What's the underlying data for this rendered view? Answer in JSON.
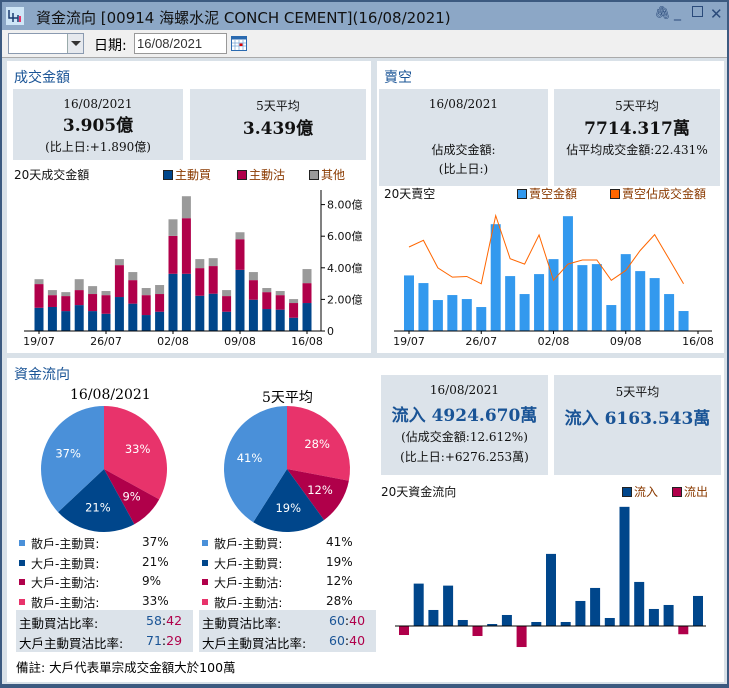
{
  "window": {
    "title": "資金流向 [00914  海螺水泥  CONCH CEMENT](16/08/2021)",
    "controls": [
      "pin",
      "minimize",
      "maximize",
      "close"
    ]
  },
  "toolbar": {
    "dropdown_value": "",
    "date_label": "日期:",
    "date_value": "16/08/2021"
  },
  "colors": {
    "buy": "#00468b",
    "sell": "#b0004a",
    "other": "#9a9a9a",
    "short": "#3399ee",
    "short_ratio": "#ff6600",
    "retail_buy": "#4a90d9",
    "big_buy": "#00468b",
    "big_sell": "#b0004a",
    "retail_sell": "#e8336b",
    "title_blue": "#1a5496"
  },
  "turnover": {
    "title": "成交金額",
    "today": {
      "date": "16/08/2021",
      "value": "3.905億",
      "change": "(比上日:+1.890億)"
    },
    "avg5": {
      "label": "5天平均",
      "value": "3.439億"
    },
    "chart_title": "20天成交金額",
    "legend": [
      "主動買",
      "主動沽",
      "其他"
    ]
  },
  "short": {
    "title": "賣空",
    "today": {
      "date": "16/08/2021",
      "pct": "佔成交金額:",
      "change": "(比上日:)"
    },
    "avg5": {
      "label": "5天平均",
      "value": "7714.317萬",
      "pct": "佔平均成交金額:22.431%"
    },
    "chart_title": "20天賣空",
    "legend": [
      "賣空金額",
      "賣空佔成交金額"
    ]
  },
  "flow": {
    "title": "資金流向",
    "pie_today_title": "16/08/2021",
    "pie_avg_title": "5天平均",
    "categories": [
      "散戶-主動買:",
      "大戶-主動買:",
      "大戶-主動沽:",
      "散戶-主動沽:"
    ],
    "today_pct": [
      37,
      21,
      9,
      33
    ],
    "avg_pct": [
      41,
      19,
      12,
      28
    ],
    "ratio_labels": [
      "主動買沽比率:",
      "大戶主動買沽比率:"
    ],
    "today_ratios": [
      [
        "58",
        "42"
      ],
      [
        "71",
        "29"
      ]
    ],
    "avg_ratios": [
      [
        "60",
        "40"
      ],
      [
        "60",
        "40"
      ]
    ],
    "today": {
      "date": "16/08/2021",
      "value": "流入 4924.670萬",
      "pct": "(佔成交金額:12.612%)",
      "change": "(比上日:+6276.253萬)"
    },
    "avg5": {
      "label": "5天平均",
      "value": "流入 6163.543萬"
    },
    "chart_title": "20天資金流向",
    "legend": [
      "流入",
      "流出"
    ],
    "note": "備註: 大戶代表單宗成交金額大於100萬"
  },
  "chart_data": [
    {
      "type": "bar",
      "stacked": true,
      "title": "20天成交金額",
      "x_ticks": [
        "19/07",
        "26/07",
        "02/08",
        "09/08",
        "16/08"
      ],
      "y_ticks": [
        "0",
        "2.00億",
        "4.00億",
        "6.00億",
        "8.00億"
      ],
      "ylim": [
        0,
        8.8
      ],
      "unit": "億",
      "series": [
        {
          "name": "主動買",
          "values": [
            1.47,
            1.52,
            1.26,
            1.64,
            1.26,
            1.09,
            2.15,
            1.73,
            1.01,
            1.22,
            3.62,
            3.62,
            2.23,
            2.36,
            1.22,
            3.87,
            1.98,
            1.39,
            1.35,
            0.84,
            1.77
          ]
        },
        {
          "name": "主動沽",
          "values": [
            1.5,
            0.75,
            0.95,
            0.95,
            1.08,
            1.18,
            2.02,
            1.49,
            1.26,
            1.12,
            2.4,
            3.52,
            1.75,
            1.75,
            0.99,
            1.94,
            1.24,
            1.07,
            0.92,
            0.93,
            1.26
          ]
        },
        {
          "name": "其他",
          "values": [
            0.31,
            0.32,
            0.25,
            0.69,
            0.5,
            0.26,
            0.38,
            0.51,
            0.45,
            0.57,
            1.05,
            1.39,
            0.57,
            0.5,
            0.38,
            0.44,
            0.51,
            0.26,
            0.26,
            0.25,
            0.89
          ]
        }
      ]
    },
    {
      "type": "bar+line",
      "title": "20天賣空",
      "x_ticks": [
        "19/07",
        "26/07",
        "02/08",
        "09/08",
        "16/08"
      ],
      "series": [
        {
          "name": "賣空金額",
          "unit": "萬",
          "values": [
            8684,
            7488,
            4836,
            5616,
            4992,
            3744,
            16692,
            8580,
            5772,
            8892,
            11232,
            17940,
            10296,
            10452,
            4056,
            12012,
            9360,
            8268,
            5772,
            3120,
            null
          ]
        },
        {
          "name": "賣空佔成交金額",
          "unit": "%",
          "values": [
            26.5,
            28.6,
            19.9,
            17.0,
            17.2,
            14.9,
            36.4,
            22.8,
            21.1,
            30.3,
            16.0,
            21.1,
            22.4,
            22.4,
            16.0,
            19.1,
            25.4,
            30.4,
            22.7,
            14.9,
            null
          ]
        }
      ]
    },
    {
      "type": "pie",
      "title": "16/08/2021",
      "labels": [
        "散戶-主動買",
        "大戶-主動買",
        "大戶-主動沽",
        "散戶-主動沽"
      ],
      "values": [
        37,
        21,
        9,
        33
      ]
    },
    {
      "type": "pie",
      "title": "5天平均",
      "labels": [
        "散戶-主動買",
        "大戶-主動買",
        "大戶-主動沽",
        "散戶-主動沽"
      ],
      "values": [
        41,
        19,
        12,
        28
      ]
    },
    {
      "type": "bar",
      "title": "20天資金流向",
      "unit": "萬",
      "values": [
        -1477,
        6950,
        2627,
        6620,
        985,
        -1641,
        328,
        1806,
        -3447,
        657,
        11820,
        657,
        4104,
        6238,
        1313,
        19535,
        7223,
        2791,
        3447,
        -1352,
        4925
      ]
    }
  ]
}
